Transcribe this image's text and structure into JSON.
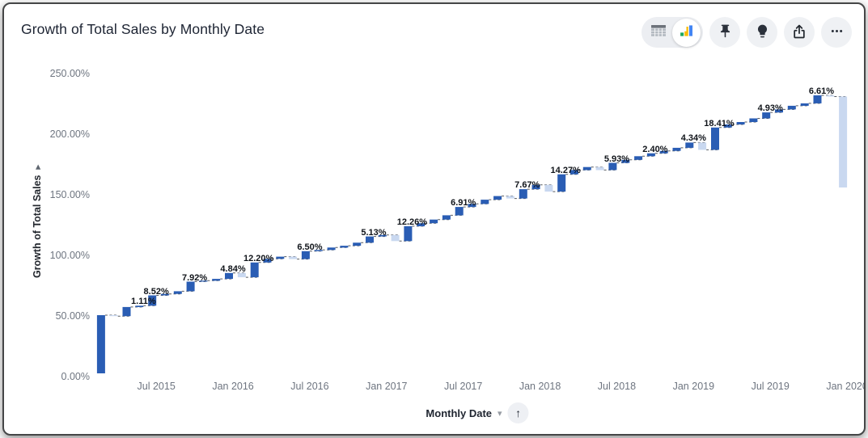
{
  "header": {
    "title": "Growth of Total Sales by Monthly Date"
  },
  "toolbar": {
    "view_toggle": {
      "options": [
        "table-view",
        "chart-view"
      ],
      "selected": "chart-view"
    },
    "buttons": [
      "pin",
      "insights",
      "share",
      "more-options"
    ]
  },
  "x_axis": {
    "title": "Monthly Date",
    "sort": "ascending"
  },
  "chart_data": {
    "type": "waterfall",
    "title": "Growth of Total Sales by Monthly Date",
    "xlabel": "Monthly Date",
    "ylabel": "Growth of Total Sales",
    "ylim": [
      0,
      250
    ],
    "grid": false,
    "legend": false,
    "y_tick_labels": [
      "0.00%",
      "50.00%",
      "100.00%",
      "150.00%",
      "200.00%",
      "250.00%"
    ],
    "x_tick_labels": [
      "Jul 2015",
      "Jan 2016",
      "Jul 2016",
      "Jan 2017",
      "Jul 2017",
      "Jan 2018",
      "Jul 2018",
      "Jan 2019",
      "Jul 2019",
      "Jan 2020"
    ],
    "colors": {
      "increase": "#2a5db4",
      "decrease": "#c9d8f0",
      "connector": "#55595f"
    },
    "points": [
      {
        "month": "Mar 2015",
        "change": 48.0
      },
      {
        "month": "Apr 2015",
        "change": -0.8
      },
      {
        "month": "May 2015",
        "change": 7.5
      },
      {
        "month": "Jun 2015",
        "change": 1.11,
        "label": "1.11%"
      },
      {
        "month": "Jul 2015",
        "change": 8.52,
        "label": "8.52%"
      },
      {
        "month": "Aug 2015",
        "change": 1.2
      },
      {
        "month": "Sep 2015",
        "change": 2.2
      },
      {
        "month": "Oct 2015",
        "change": 7.92,
        "label": "7.92%"
      },
      {
        "month": "Nov 2015",
        "change": 0.8
      },
      {
        "month": "Dec 2015",
        "change": 1.5
      },
      {
        "month": "Jan 2016",
        "change": 4.84,
        "label": "4.84%"
      },
      {
        "month": "Feb 2016",
        "change": -3.5
      },
      {
        "month": "Mar 2016",
        "change": 12.2,
        "label": "12.20%"
      },
      {
        "month": "Apr 2016",
        "change": 3.0
      },
      {
        "month": "May 2016",
        "change": 1.8
      },
      {
        "month": "Jun 2016",
        "change": -2.0
      },
      {
        "month": "Jul 2016",
        "change": 6.5,
        "label": "6.50%"
      },
      {
        "month": "Aug 2016",
        "change": 1.0
      },
      {
        "month": "Sep 2016",
        "change": 2.0
      },
      {
        "month": "Oct 2016",
        "change": 1.5
      },
      {
        "month": "Nov 2016",
        "change": 2.5
      },
      {
        "month": "Dec 2016",
        "change": 5.13,
        "label": "5.13%"
      },
      {
        "month": "Jan 2017",
        "change": 1.2
      },
      {
        "month": "Feb 2017",
        "change": -5.0
      },
      {
        "month": "Mar 2017",
        "change": 12.26,
        "label": "12.26%"
      },
      {
        "month": "Apr 2017",
        "change": 2.5
      },
      {
        "month": "May 2017",
        "change": 3.0
      },
      {
        "month": "Jun 2017",
        "change": 3.5
      },
      {
        "month": "Jul 2017",
        "change": 6.91,
        "label": "6.91%"
      },
      {
        "month": "Aug 2017",
        "change": 2.5
      },
      {
        "month": "Sep 2017",
        "change": 3.5
      },
      {
        "month": "Oct 2017",
        "change": 3.0
      },
      {
        "month": "Nov 2017",
        "change": -2.0
      },
      {
        "month": "Dec 2017",
        "change": 7.67,
        "label": "7.67%"
      },
      {
        "month": "Jan 2018",
        "change": 3.5
      },
      {
        "month": "Feb 2018",
        "change": -5.5
      },
      {
        "month": "Mar 2018",
        "change": 14.27,
        "label": "14.27%"
      },
      {
        "month": "Apr 2018",
        "change": 3.5
      },
      {
        "month": "May 2018",
        "change": 2.5
      },
      {
        "month": "Jun 2018",
        "change": -2.5
      },
      {
        "month": "Jul 2018",
        "change": 5.93,
        "label": "5.93%"
      },
      {
        "month": "Aug 2018",
        "change": 2.5
      },
      {
        "month": "Sep 2018",
        "change": 3.0
      },
      {
        "month": "Oct 2018",
        "change": 2.4,
        "label": "2.40%"
      },
      {
        "month": "Nov 2018",
        "change": 2.0
      },
      {
        "month": "Dec 2018",
        "change": 2.5
      },
      {
        "month": "Jan 2019",
        "change": 4.34,
        "label": "4.34%"
      },
      {
        "month": "Feb 2019",
        "change": -6.0
      },
      {
        "month": "Mar 2019",
        "change": 18.41,
        "label": "18.41%"
      },
      {
        "month": "Apr 2019",
        "change": 2.5
      },
      {
        "month": "May 2019",
        "change": 2.0
      },
      {
        "month": "Jun 2019",
        "change": 3.0
      },
      {
        "month": "Jul 2019",
        "change": 4.93,
        "label": "4.93%"
      },
      {
        "month": "Aug 2019",
        "change": 2.5
      },
      {
        "month": "Sep 2019",
        "change": 3.0
      },
      {
        "month": "Oct 2019",
        "change": 2.0
      },
      {
        "month": "Nov 2019",
        "change": 6.61,
        "label": "6.61%"
      },
      {
        "month": "Dec 2019",
        "change": -1.0
      },
      {
        "month": "Jan 2020",
        "change": -75.0
      }
    ]
  }
}
